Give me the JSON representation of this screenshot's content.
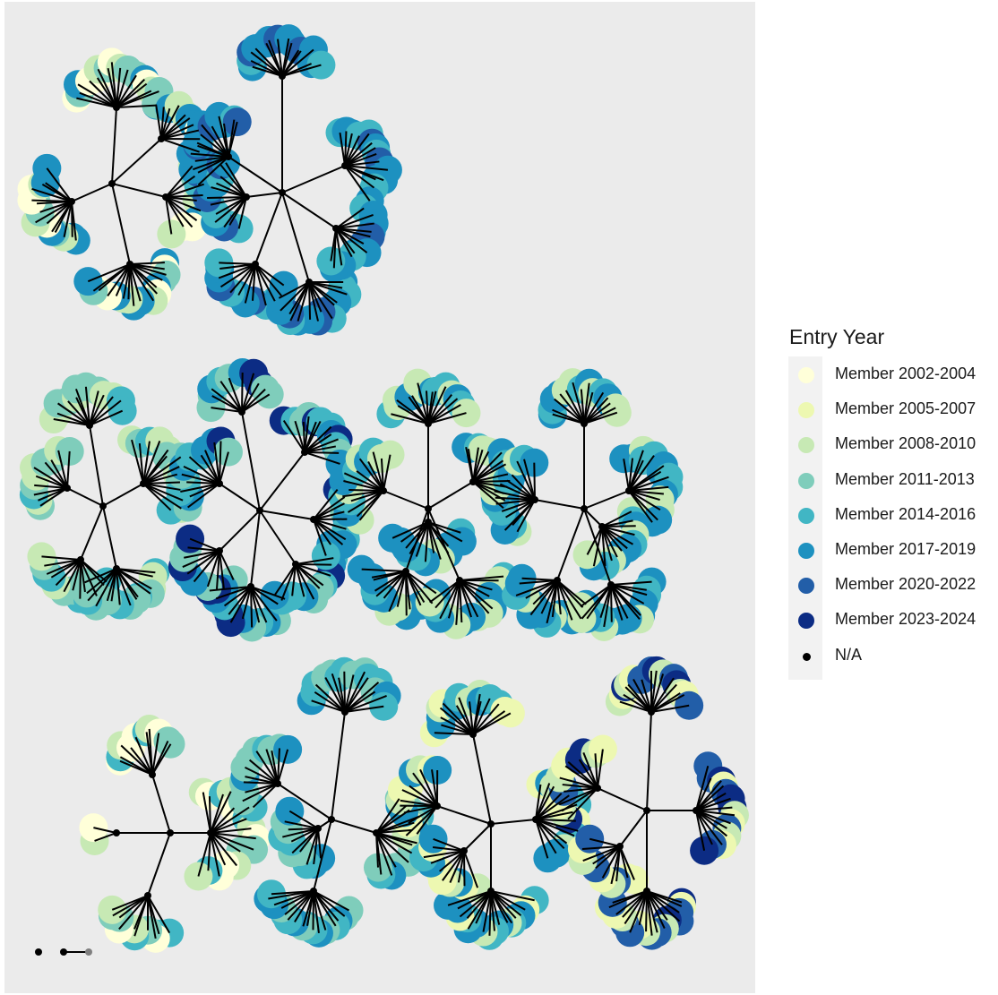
{
  "legend": {
    "title": "Entry Year",
    "items": [
      {
        "label": "Member 2002-2004",
        "color": "#ffffd9",
        "kind": "member"
      },
      {
        "label": "Member 2005-2007",
        "color": "#edf8b1",
        "kind": "member"
      },
      {
        "label": "Member 2008-2010",
        "color": "#c7e9b4",
        "kind": "member"
      },
      {
        "label": "Member 2011-2013",
        "color": "#7fcdbb",
        "kind": "member"
      },
      {
        "label": "Member 2014-2016",
        "color": "#41b6c4",
        "kind": "member"
      },
      {
        "label": "Member 2017-2019",
        "color": "#1d91c0",
        "kind": "member"
      },
      {
        "label": "Member 2020-2022",
        "color": "#225ea8",
        "kind": "member"
      },
      {
        "label": "Member 2023-2024",
        "color": "#0c2c84",
        "kind": "member"
      },
      {
        "label": "N/A",
        "color": "#000000",
        "kind": "na"
      }
    ]
  },
  "networks": [
    {
      "id": "tree-1",
      "palette": [
        "#ffffd9",
        "#c7e9b4",
        "#7fcdbb",
        "#1d91c0"
      ]
    },
    {
      "id": "tree-2",
      "palette": [
        "#1d91c0",
        "#1d91c0",
        "#41b6c4",
        "#225ea8"
      ]
    },
    {
      "id": "tree-3",
      "palette": [
        "#7fcdbb",
        "#c7e9b4",
        "#7fcdbb",
        "#41b6c4"
      ]
    },
    {
      "id": "tree-4",
      "palette": [
        "#41b6c4",
        "#7fcdbb",
        "#1d91c0",
        "#0c2c84"
      ]
    },
    {
      "id": "tree-5",
      "palette": [
        "#1d91c0",
        "#41b6c4",
        "#c7e9b4",
        "#1d91c0"
      ]
    },
    {
      "id": "tree-6",
      "palette": [
        "#1d91c0",
        "#c7e9b4",
        "#41b6c4",
        "#1d91c0"
      ]
    },
    {
      "id": "tree-7",
      "palette": [
        "#c7e9b4",
        "#ffffd9",
        "#7fcdbb",
        "#41b6c4"
      ]
    },
    {
      "id": "tree-8",
      "palette": [
        "#7fcdbb",
        "#1d91c0",
        "#41b6c4",
        "#7fcdbb"
      ]
    },
    {
      "id": "tree-9",
      "palette": [
        "#c7e9b4",
        "#edf8b1",
        "#1d91c0",
        "#41b6c4"
      ]
    },
    {
      "id": "tree-10",
      "palette": [
        "#c7e9b4",
        "#edf8b1",
        "#225ea8",
        "#0c2c84"
      ]
    }
  ]
}
